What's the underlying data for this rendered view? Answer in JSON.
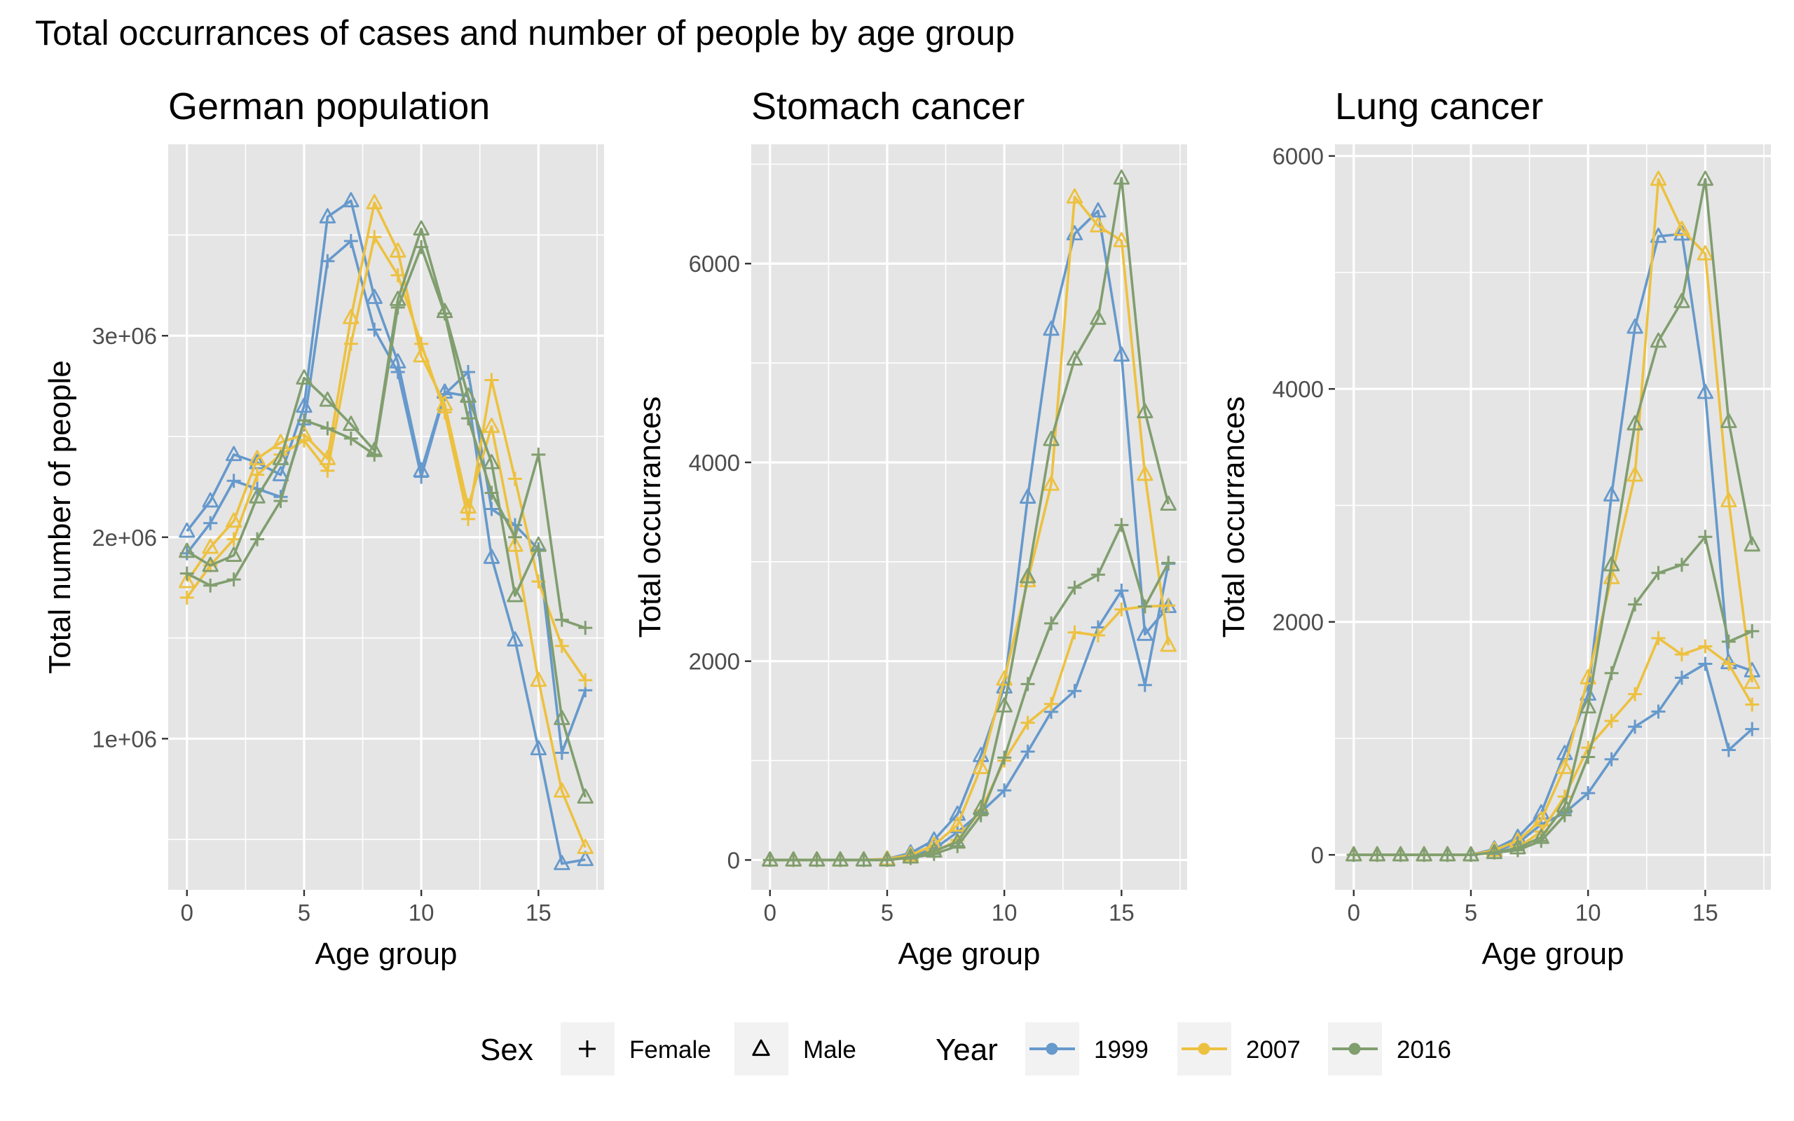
{
  "title": "Total occurrances of cases and number of people by age group",
  "colors": {
    "1999": "#6699CC",
    "2007": "#EDC140",
    "2016": "#819E6F",
    "panel_bg": "#E5E5E5",
    "grid": "#FFFFFF"
  },
  "legend": {
    "sex_title": "Sex",
    "sex_items": [
      {
        "label": "Female",
        "shape": "plus"
      },
      {
        "label": "Male",
        "shape": "triangle"
      }
    ],
    "year_title": "Year",
    "year_items": [
      {
        "label": "1999"
      },
      {
        "label": "2007"
      },
      {
        "label": "2016"
      }
    ]
  },
  "chart_data": [
    {
      "type": "line",
      "subtitle": "German population",
      "xlabel": "Age group",
      "ylabel": "Total number of people",
      "xlim": [
        -0.8,
        17.8
      ],
      "ylim": [
        250000,
        3950000
      ],
      "xticks": [
        0,
        5,
        10,
        15
      ],
      "xtick_labels": [
        "0",
        "5",
        "10",
        "15"
      ],
      "yticks": [
        1000000,
        2000000,
        3000000
      ],
      "ytick_labels": [
        "1e+06",
        "2e+06",
        "3e+06"
      ],
      "x": [
        0,
        1,
        2,
        3,
        4,
        5,
        6,
        7,
        8,
        9,
        10,
        11,
        12,
        13,
        14,
        15,
        16,
        17
      ],
      "series": [
        {
          "year": "1999",
          "sex": "Female",
          "values": [
            1920000,
            2070000,
            2280000,
            2240000,
            2200000,
            2560000,
            3370000,
            3470000,
            3030000,
            2820000,
            2300000,
            2710000,
            2820000,
            2140000,
            2060000,
            1940000,
            930000,
            1240000
          ]
        },
        {
          "year": "1999",
          "sex": "Male",
          "values": [
            2030000,
            2180000,
            2410000,
            2370000,
            2310000,
            2650000,
            3590000,
            3670000,
            3190000,
            2870000,
            2330000,
            2720000,
            2700000,
            1900000,
            1490000,
            950000,
            380000,
            400000
          ]
        },
        {
          "year": "2007",
          "sex": "Female",
          "values": [
            1700000,
            1860000,
            1990000,
            2310000,
            2410000,
            2480000,
            2330000,
            2960000,
            3490000,
            3300000,
            2960000,
            2620000,
            2090000,
            2780000,
            2290000,
            1780000,
            1460000,
            1290000
          ]
        },
        {
          "year": "2007",
          "sex": "Male",
          "values": [
            1780000,
            1950000,
            2080000,
            2390000,
            2470000,
            2510000,
            2390000,
            3090000,
            3660000,
            3420000,
            2900000,
            2660000,
            2150000,
            2550000,
            1960000,
            1290000,
            740000,
            460000
          ]
        },
        {
          "year": "2016",
          "sex": "Female",
          "values": [
            1820000,
            1760000,
            1790000,
            1990000,
            2180000,
            2580000,
            2540000,
            2490000,
            2410000,
            3140000,
            3440000,
            3110000,
            2590000,
            2220000,
            2000000,
            2410000,
            1590000,
            1550000
          ]
        },
        {
          "year": "2016",
          "sex": "Male",
          "values": [
            1930000,
            1860000,
            1910000,
            2200000,
            2390000,
            2790000,
            2680000,
            2560000,
            2430000,
            3180000,
            3530000,
            3120000,
            2700000,
            2370000,
            1710000,
            1960000,
            1100000,
            710000
          ]
        }
      ]
    },
    {
      "type": "line",
      "subtitle": "Stomach cancer",
      "xlabel": "Age group",
      "ylabel": "Total occurrances",
      "xlim": [
        -0.8,
        17.8
      ],
      "ylim": [
        -300,
        7200
      ],
      "xticks": [
        0,
        5,
        10,
        15
      ],
      "xtick_labels": [
        "0",
        "5",
        "10",
        "15"
      ],
      "yticks": [
        0,
        2000,
        4000,
        6000
      ],
      "ytick_labels": [
        "0",
        "2000",
        "4000",
        "6000"
      ],
      "x": [
        0,
        1,
        2,
        3,
        4,
        5,
        6,
        7,
        8,
        9,
        10,
        11,
        12,
        13,
        14,
        15,
        16,
        17
      ],
      "series": [
        {
          "year": "1999",
          "sex": "Female",
          "values": [
            0,
            0,
            0,
            0,
            0,
            10,
            40,
            110,
            280,
            480,
            700,
            1090,
            1490,
            1700,
            2340,
            2710,
            1760,
            2980
          ]
        },
        {
          "year": "1999",
          "sex": "Male",
          "values": [
            0,
            0,
            0,
            0,
            0,
            10,
            70,
            200,
            460,
            1050,
            1740,
            3650,
            5340,
            6300,
            6530,
            5080,
            2270,
            2550
          ]
        },
        {
          "year": "2007",
          "sex": "Female",
          "values": [
            0,
            0,
            0,
            0,
            0,
            10,
            30,
            80,
            200,
            500,
            1000,
            1380,
            1570,
            2290,
            2260,
            2520,
            2550,
            2560
          ]
        },
        {
          "year": "2007",
          "sex": "Male",
          "values": [
            0,
            0,
            0,
            0,
            0,
            10,
            50,
            150,
            350,
            930,
            1820,
            2810,
            3780,
            6670,
            6380,
            6230,
            3880,
            2160
          ]
        },
        {
          "year": "2016",
          "sex": "Female",
          "values": [
            0,
            0,
            0,
            0,
            0,
            0,
            20,
            60,
            140,
            450,
            1030,
            1770,
            2380,
            2740,
            2870,
            3370,
            2550,
            2990
          ]
        },
        {
          "year": "2016",
          "sex": "Male",
          "values": [
            0,
            0,
            0,
            0,
            0,
            0,
            30,
            90,
            180,
            520,
            1550,
            2850,
            4230,
            5040,
            5450,
            6860,
            4510,
            3580
          ]
        }
      ]
    },
    {
      "type": "line",
      "subtitle": "Lung cancer",
      "xlabel": "Age group",
      "ylabel": "Total occurrances",
      "xlim": [
        -0.8,
        17.8
      ],
      "ylim": [
        -300,
        6100
      ],
      "xticks": [
        0,
        5,
        10,
        15
      ],
      "xtick_labels": [
        "0",
        "5",
        "10",
        "15"
      ],
      "yticks": [
        0,
        2000,
        4000,
        6000
      ],
      "ytick_labels": [
        "0",
        "2000",
        "4000",
        "6000"
      ],
      "x": [
        0,
        1,
        2,
        3,
        4,
        5,
        6,
        7,
        8,
        9,
        10,
        11,
        12,
        13,
        14,
        15,
        16,
        17
      ],
      "series": [
        {
          "year": "1999",
          "sex": "Female",
          "values": [
            0,
            0,
            0,
            0,
            0,
            0,
            30,
            100,
            260,
            360,
            530,
            820,
            1100,
            1230,
            1520,
            1640,
            900,
            1080
          ]
        },
        {
          "year": "1999",
          "sex": "Male",
          "values": [
            0,
            0,
            0,
            0,
            0,
            0,
            50,
            150,
            360,
            870,
            1380,
            3090,
            4530,
            5310,
            5330,
            3970,
            1650,
            1580
          ]
        },
        {
          "year": "2007",
          "sex": "Female",
          "values": [
            0,
            0,
            0,
            0,
            0,
            0,
            20,
            60,
            200,
            500,
            920,
            1150,
            1380,
            1860,
            1720,
            1790,
            1640,
            1290
          ]
        },
        {
          "year": "2007",
          "sex": "Male",
          "values": [
            0,
            0,
            0,
            0,
            0,
            0,
            40,
            120,
            300,
            750,
            1520,
            2380,
            3260,
            5800,
            5370,
            5160,
            3040,
            1480
          ]
        },
        {
          "year": "2016",
          "sex": "Female",
          "values": [
            0,
            0,
            0,
            0,
            0,
            0,
            20,
            40,
            120,
            340,
            840,
            1560,
            2150,
            2420,
            2490,
            2730,
            1830,
            1920
          ]
        },
        {
          "year": "2016",
          "sex": "Male",
          "values": [
            0,
            0,
            0,
            0,
            0,
            0,
            20,
            60,
            150,
            420,
            1270,
            2490,
            3700,
            4410,
            4750,
            5800,
            3720,
            2660
          ]
        }
      ]
    }
  ]
}
